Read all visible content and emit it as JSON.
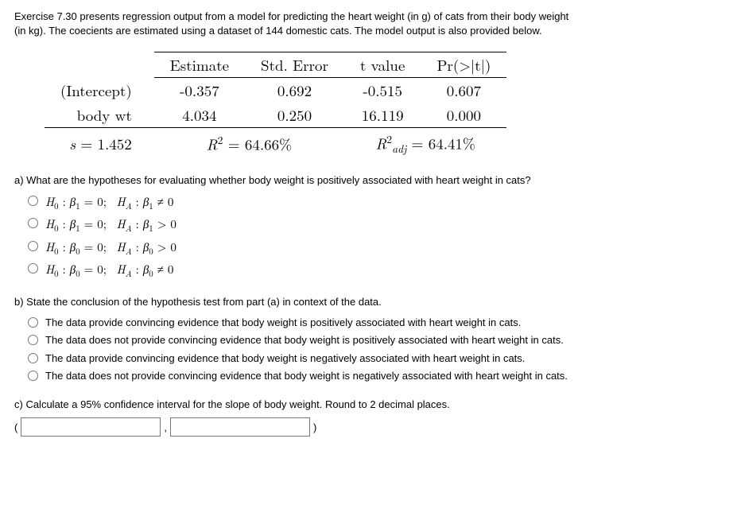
{
  "intro": "Exercise 7.30 presents regression output from a model for predicting the heart weight (in g) of cats from their body weight (in kg). The coecients are estimated using a dataset of 144 domestic cats. The model output is also provided below.",
  "table": {
    "headers": {
      "est": "Estimate",
      "se": "Std. Error",
      "t": "t value",
      "p": "Pr(>|t|)"
    },
    "rows": [
      {
        "label": "(Intercept)",
        "est": "-0.357",
        "se": "0.692",
        "t": "-0.515",
        "p": "0.607"
      },
      {
        "label": "body wt",
        "est": "4.034",
        "se": "0.250",
        "t": "16.119",
        "p": "0.000"
      }
    ],
    "foot": {
      "s": "1.452",
      "r2": "64.66%",
      "r2adj": "64.41%"
    }
  },
  "qA": {
    "text": "a) What are the hypotheses for evaluating whether body weight is positively associated with heart weight in cats?",
    "opts": [
      {
        "h0sub": "1",
        "hasub": "1",
        "rel": "≠"
      },
      {
        "h0sub": "1",
        "hasub": "1",
        "rel": ">"
      },
      {
        "h0sub": "0",
        "hasub": "0",
        "rel": ">"
      },
      {
        "h0sub": "0",
        "hasub": "0",
        "rel": "≠"
      }
    ]
  },
  "qB": {
    "text": "b) State the conclusion of the hypothesis test from part (a) in context of the data.",
    "opts": [
      "The data provide convincing evidence that body weight is positively associated with heart weight in cats.",
      "The data does not provide convincing evidence that body weight is positively associated with heart weight in cats.",
      "The data provide convincing evidence that body weight is negatively associated with heart weight in cats.",
      "The data does not provide convincing evidence that body weight is negatively associated with heart weight in cats."
    ]
  },
  "qC": {
    "text": "c) Calculate a 95% confidence interval for the slope of body weight. Round to 2 decimal places.",
    "open": "(",
    "sep": ",",
    "close": ")"
  }
}
